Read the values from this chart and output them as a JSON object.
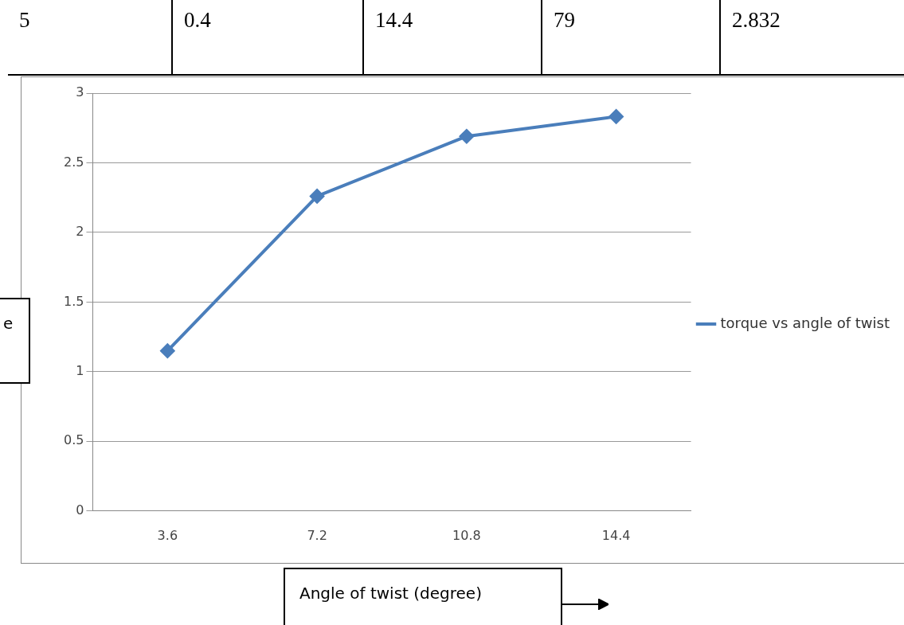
{
  "chart_data": {
    "type": "line",
    "categories": [
      "3.6",
      "7.2",
      "10.8",
      "14.4"
    ],
    "series": [
      {
        "name": "torque vs angle of twist",
        "color": "#4a7ebb",
        "values": [
          1.15,
          2.26,
          2.69,
          2.832
        ]
      }
    ],
    "ylim": [
      0,
      3
    ],
    "yticks": [
      0,
      0.5,
      1,
      1.5,
      2,
      2.5,
      3
    ],
    "xlabel": "Angle of twist (degree)",
    "ylabel": "e",
    "annotations": [
      "5",
      "0.4",
      "14.4",
      "79",
      "2.832"
    ],
    "grid": "y",
    "legend": "right",
    "marker": "diamond",
    "line_style": "solid"
  }
}
